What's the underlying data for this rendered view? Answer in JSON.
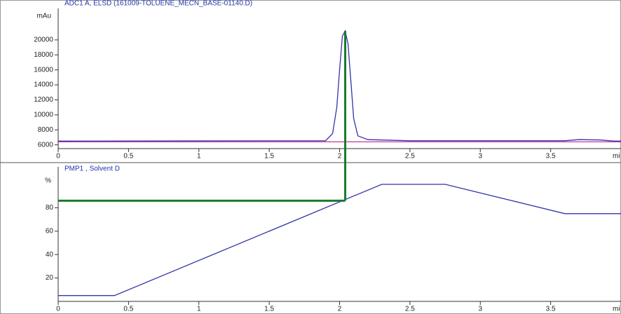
{
  "chart_data": [
    {
      "type": "line",
      "title": "ADC1 A, ELSD (161009-TOLUENE_MECN_BASE-01140.D)",
      "ylabel": "mAu",
      "xlabel": "mi",
      "x": [
        0,
        1.9,
        1.95,
        1.98,
        2.0,
        2.02,
        2.04,
        2.06,
        2.08,
        2.1,
        2.13,
        2.2,
        2.5,
        3.6,
        3.7,
        3.85,
        3.95,
        4.0
      ],
      "values": [
        6500,
        6550,
        7500,
        11000,
        16000,
        20500,
        21200,
        19500,
        14500,
        9500,
        7200,
        6700,
        6550,
        6550,
        6700,
        6650,
        6500,
        6500
      ],
      "color": "#3333aa",
      "threshold": 6400,
      "threshold_color": "#cc3399",
      "xlim": [
        0,
        4
      ],
      "ylim": [
        5500,
        24200
      ],
      "xticks": [
        0,
        0.5,
        1,
        1.5,
        2,
        2.5,
        3,
        3.5
      ],
      "yticks": [
        6000,
        8000,
        10000,
        12000,
        14000,
        16000,
        18000,
        20000
      ]
    },
    {
      "type": "line",
      "title": "PMP1 , Solvent D",
      "ylabel": "%",
      "xlabel": "mi",
      "x": [
        0,
        0.4,
        2.3,
        2.75,
        3.6,
        4.0
      ],
      "values": [
        5,
        5,
        100,
        100,
        75,
        75
      ],
      "color": "#3333aa",
      "guide": {
        "x": 2.04,
        "y": 86
      },
      "guide_color": "#1a7a2e",
      "xlim": [
        0,
        4
      ],
      "ylim": [
        0,
        115
      ],
      "xticks": [
        0,
        0.5,
        1,
        1.5,
        2,
        2.5,
        3,
        3.5
      ],
      "yticks": [
        20,
        40,
        60,
        80
      ]
    }
  ]
}
